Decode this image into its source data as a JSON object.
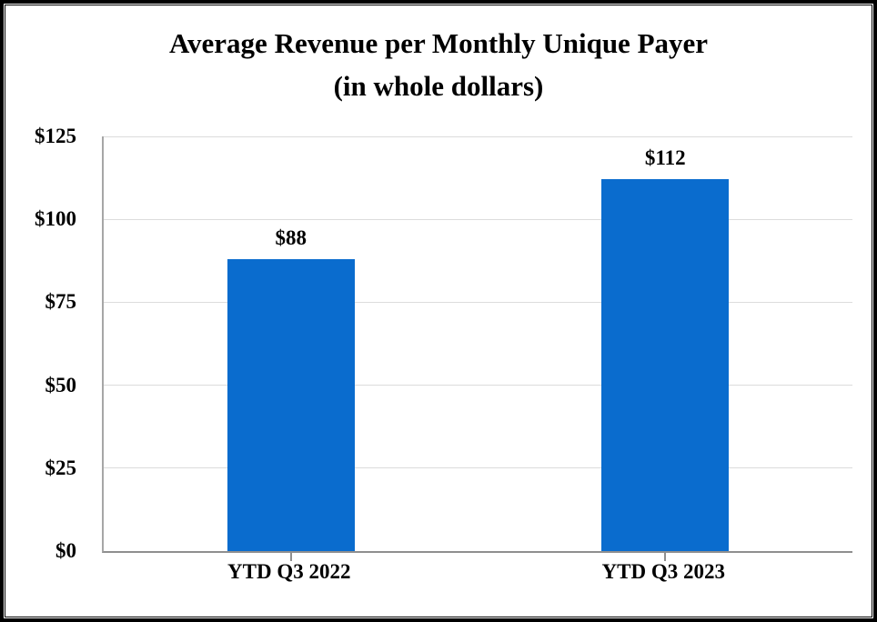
{
  "chart_data": {
    "type": "bar",
    "title": "Average Revenue per Monthly Unique Payer",
    "subtitle": "(in whole dollars)",
    "categories": [
      "YTD Q3 2022",
      "YTD Q3 2023"
    ],
    "values": [
      88,
      112
    ],
    "value_labels": [
      "$88",
      "$112"
    ],
    "ylim": [
      0,
      125
    ],
    "ytick_step": 25,
    "yticks": [
      0,
      25,
      50,
      75,
      100,
      125
    ],
    "ytick_labels": [
      "$0",
      "$25",
      "$50",
      "$75",
      "$100",
      "$125"
    ],
    "grid": "horizontal",
    "legend": "none",
    "bar_color": "#0a6cce",
    "gridline_color": "#dcdcdc",
    "left_axis_color": "#a6a6a6",
    "bottom_axis_color": "#8f8f8f",
    "tick_color": "#8f8f8f",
    "text_color": "#000000"
  }
}
